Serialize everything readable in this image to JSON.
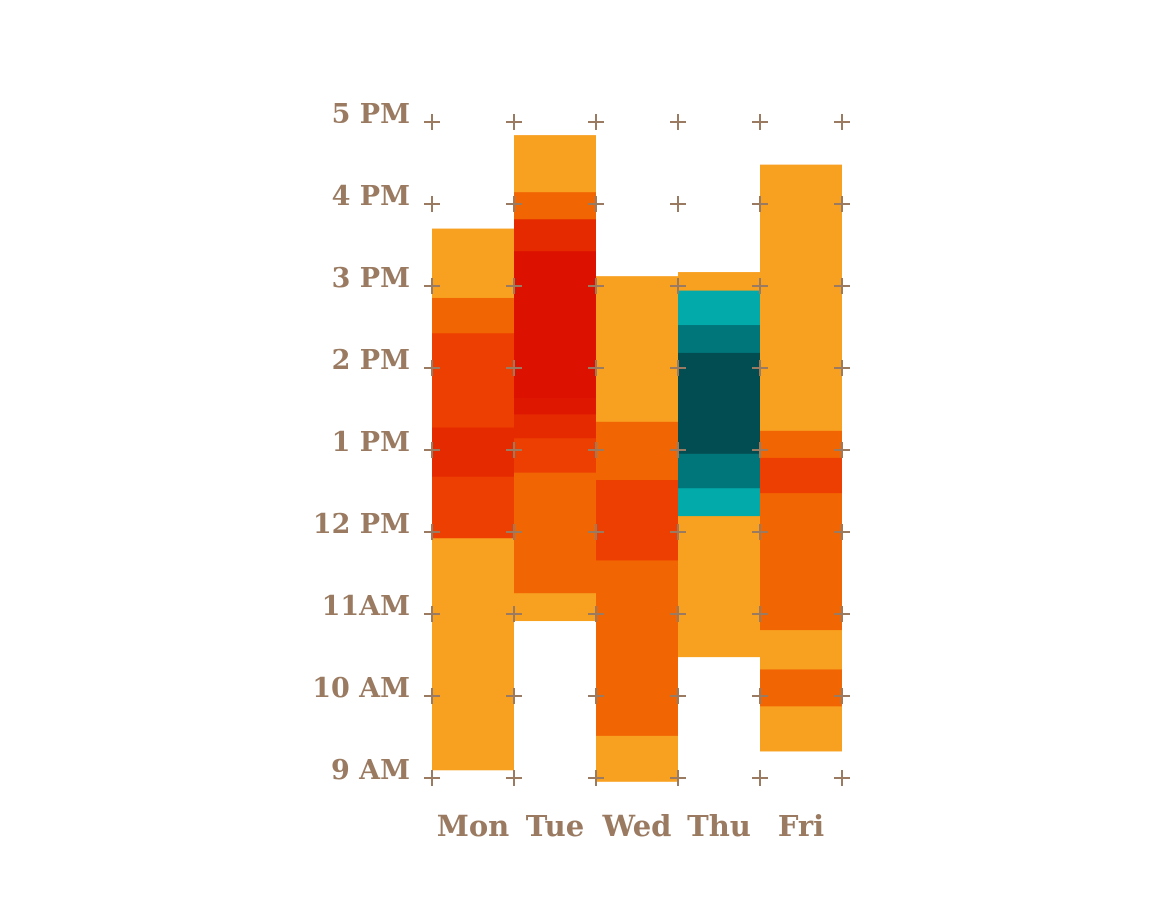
{
  "chart_data": {
    "type": "heatmap",
    "y_tick_labels": [
      "9 AM",
      "10 AM",
      "11AM",
      "12 PM",
      "1 PM",
      "2 PM",
      "3 PM",
      "4 PM",
      "5 PM"
    ],
    "y_range": [
      9,
      17
    ],
    "grid": "cross markers at every hour and day boundary",
    "days": [
      {
        "label": "Mon",
        "segments": [
          {
            "from": 9.1,
            "to": 11.93,
            "color": "#f8a020"
          },
          {
            "from": 11.93,
            "to": 12.68,
            "color": "#ec3f01"
          },
          {
            "from": 12.68,
            "to": 13.28,
            "color": "#e62a00"
          },
          {
            "from": 13.28,
            "to": 14.43,
            "color": "#ec3f01"
          },
          {
            "from": 14.43,
            "to": 14.86,
            "color": "#f26503"
          },
          {
            "from": 14.86,
            "to": 15.7,
            "color": "#f8a020"
          }
        ]
      },
      {
        "label": "Tue",
        "segments": [
          {
            "from": 10.92,
            "to": 11.26,
            "color": "#f8a020"
          },
          {
            "from": 11.26,
            "to": 12.73,
            "color": "#f26503"
          },
          {
            "from": 12.73,
            "to": 13.15,
            "color": "#ec3f01"
          },
          {
            "from": 13.15,
            "to": 13.44,
            "color": "#e62a00"
          },
          {
            "from": 13.44,
            "to": 13.64,
            "color": "#de1800"
          },
          {
            "from": 13.64,
            "to": 15.43,
            "color": "#dc1100"
          },
          {
            "from": 15.43,
            "to": 15.82,
            "color": "#e62a00"
          },
          {
            "from": 15.82,
            "to": 16.15,
            "color": "#f26503"
          },
          {
            "from": 16.15,
            "to": 16.84,
            "color": "#f8a020"
          }
        ]
      },
      {
        "label": "Wed",
        "segments": [
          {
            "from": 8.96,
            "to": 9.52,
            "color": "#f8a020"
          },
          {
            "from": 9.52,
            "to": 11.66,
            "color": "#f26503"
          },
          {
            "from": 11.66,
            "to": 12.64,
            "color": "#ec3f01"
          },
          {
            "from": 12.64,
            "to": 13.35,
            "color": "#f26503"
          },
          {
            "from": 13.35,
            "to": 15.12,
            "color": "#f8a020"
          }
        ]
      },
      {
        "label": "Thu",
        "segments": [
          {
            "from": 10.48,
            "to": 12.2,
            "color": "#f8a020"
          },
          {
            "from": 12.2,
            "to": 12.54,
            "color": "#03aaaa"
          },
          {
            "from": 12.54,
            "to": 12.96,
            "color": "#00767a"
          },
          {
            "from": 12.96,
            "to": 14.19,
            "color": "#024d52"
          },
          {
            "from": 14.19,
            "to": 14.53,
            "color": "#00767a"
          },
          {
            "from": 14.53,
            "to": 14.95,
            "color": "#03aaaa"
          },
          {
            "from": 14.95,
            "to": 15.17,
            "color": "#f8a020"
          }
        ]
      },
      {
        "label": "Fri",
        "segments": [
          {
            "from": 9.33,
            "to": 9.88,
            "color": "#f8a020"
          },
          {
            "from": 9.88,
            "to": 10.33,
            "color": "#f26503"
          },
          {
            "from": 10.33,
            "to": 10.81,
            "color": "#f8a020"
          },
          {
            "from": 10.81,
            "to": 12.48,
            "color": "#f26503"
          },
          {
            "from": 12.48,
            "to": 12.91,
            "color": "#ec3f01"
          },
          {
            "from": 12.91,
            "to": 13.24,
            "color": "#f26503"
          },
          {
            "from": 13.24,
            "to": 16.48,
            "color": "#f8a020"
          }
        ]
      }
    ]
  },
  "colors": {
    "label": "#9a7b62",
    "cross": "#9a7b62",
    "background": "#ffffff"
  }
}
